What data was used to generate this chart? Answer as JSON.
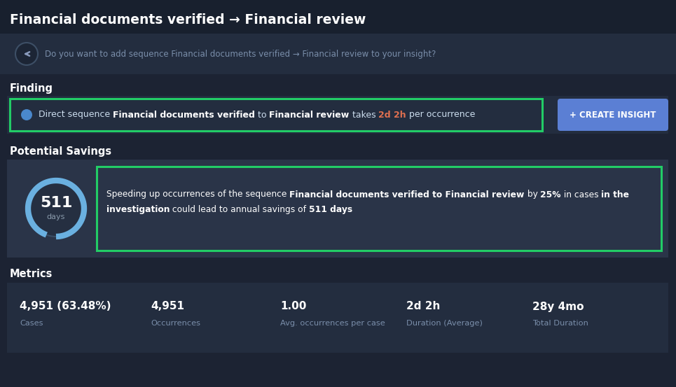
{
  "bg_dark": "#1c2333",
  "bg_medium": "#232d3f",
  "bg_card": "#2a3448",
  "bg_savings": "#252f41",
  "title": "Financial documents verified → Financial review",
  "subtitle": "Do you want to add sequence Financial documents verified → Financial review to your insight?",
  "finding_label": "Finding",
  "finding_text_parts": [
    {
      "text": "Direct sequence ",
      "bold": false,
      "color": "#ccddee"
    },
    {
      "text": "Financial documents verified",
      "bold": true,
      "color": "#ffffff"
    },
    {
      "text": " to ",
      "bold": false,
      "color": "#ccddee"
    },
    {
      "text": "Financial review",
      "bold": true,
      "color": "#ffffff"
    },
    {
      "text": " takes ",
      "bold": false,
      "color": "#ccddee"
    },
    {
      "text": "2d 2h",
      "bold": true,
      "color": "#e07050"
    },
    {
      "text": " per occurrence",
      "bold": false,
      "color": "#ccddee"
    }
  ],
  "create_btn_text": "+ CREATE INSIGHT",
  "create_btn_color": "#5b7fd4",
  "potential_savings_label": "Potential Savings",
  "circle_value": "511",
  "circle_unit": "days",
  "savings_line1": [
    {
      "text": "Speeding up occurrences of the sequence ",
      "bold": false
    },
    {
      "text": "Financial documents verified to Financial review",
      "bold": true
    },
    {
      "text": " by ",
      "bold": false
    },
    {
      "text": "25%",
      "bold": true
    },
    {
      "text": " in cases ",
      "bold": false
    },
    {
      "text": "in the",
      "bold": true
    }
  ],
  "savings_line2": [
    {
      "text": "investigation",
      "bold": true
    },
    {
      "text": " could lead to annual savings of ",
      "bold": false
    },
    {
      "text": "511 days",
      "bold": true
    }
  ],
  "metrics_label": "Metrics",
  "metrics": [
    {
      "value": "4,951 (63.48%)",
      "label": "Cases"
    },
    {
      "value": "4,951",
      "label": "Occurrences"
    },
    {
      "value": "1.00",
      "label": "Avg. occurrences per case"
    },
    {
      "value": "2d 2h",
      "label": "Duration (Average)"
    },
    {
      "value": "28y 4mo",
      "label": "Total Duration"
    }
  ],
  "green_border": "#22cc66",
  "circle_stroke": "#6ab0e0",
  "arrow_color": "#8899bb"
}
